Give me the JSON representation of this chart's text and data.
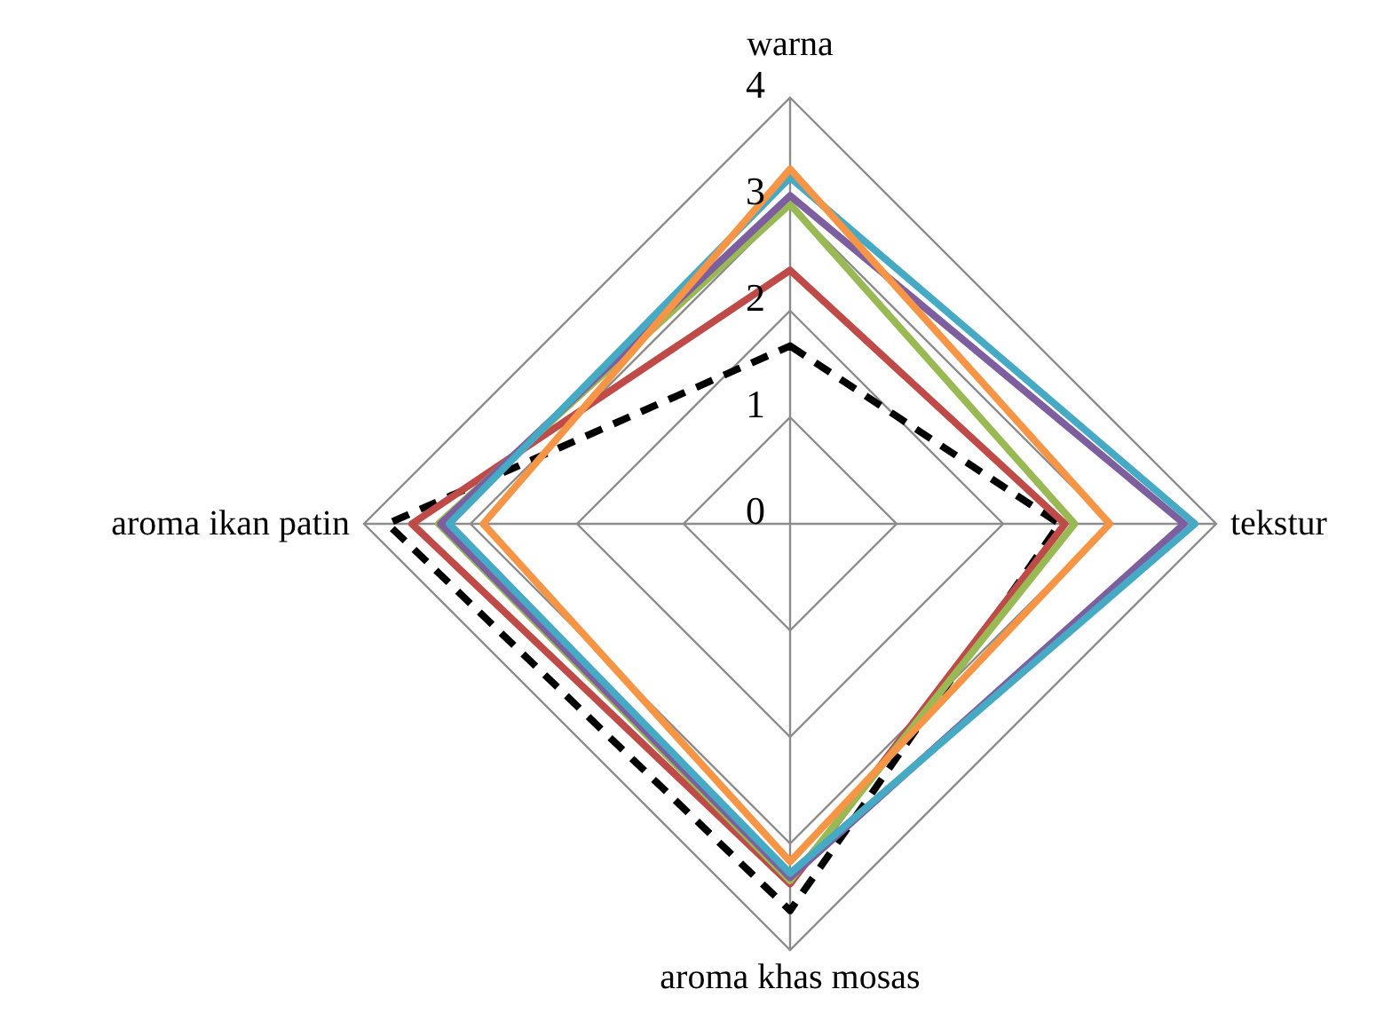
{
  "chart_data": {
    "type": "radar",
    "categories": [
      "warna",
      "tekstur",
      "aroma khas mosas",
      "aroma ikan patin"
    ],
    "ylim": [
      0,
      4
    ],
    "yticks": [
      0,
      1,
      2,
      3,
      4
    ],
    "grid": true,
    "legend": false,
    "marker": "none",
    "series": [
      {
        "color": "#000000",
        "line_style": "dashed",
        "values": [
          1.67,
          2.53,
          3.63,
          3.78
        ]
      },
      {
        "color": "#be4b48",
        "line_style": "solid",
        "values": [
          2.38,
          2.58,
          3.38,
          3.55
        ]
      },
      {
        "color": "#98b954",
        "line_style": "solid",
        "values": [
          3.0,
          2.67,
          3.35,
          3.3
        ]
      },
      {
        "color": "#7d5fa0",
        "line_style": "solid",
        "values": [
          3.08,
          3.7,
          3.32,
          3.28
        ]
      },
      {
        "color": "#46aac5",
        "line_style": "solid",
        "values": [
          3.25,
          3.8,
          3.28,
          3.2
        ]
      },
      {
        "color": "#f69545",
        "line_style": "solid",
        "values": [
          3.33,
          3.0,
          3.17,
          2.88
        ]
      }
    ]
  }
}
